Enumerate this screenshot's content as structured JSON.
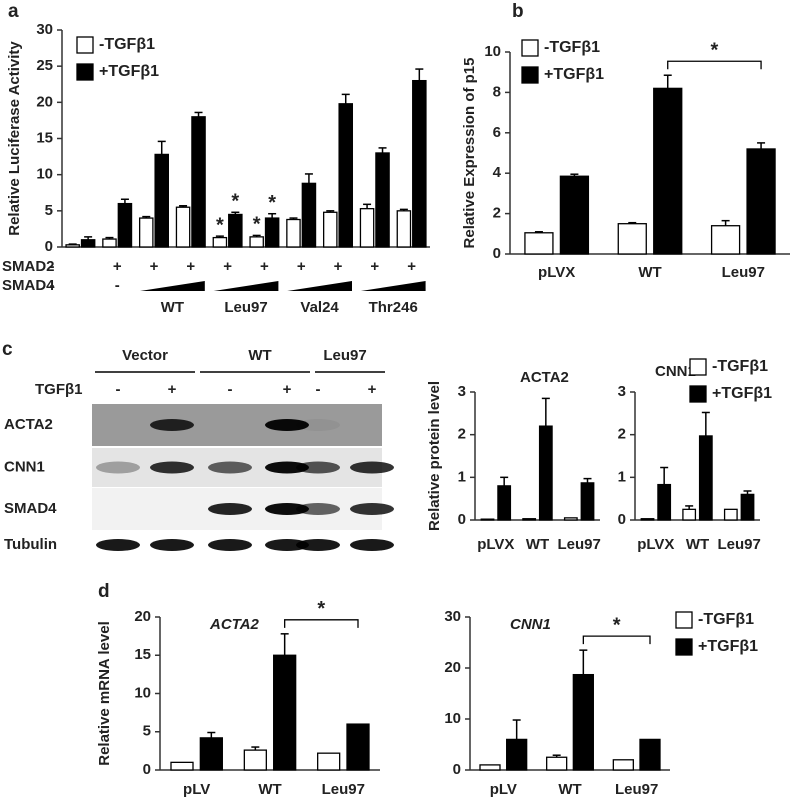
{
  "chart_data": [
    {
      "type": "bar",
      "panel": "a",
      "ylabel": "Relative Luciferase Activity",
      "ylim": [
        0,
        30
      ],
      "yticks": [
        0,
        5,
        10,
        15,
        20,
        25,
        30
      ],
      "categories": [
        null,
        null,
        null,
        null,
        null,
        null,
        null,
        null,
        null,
        null
      ],
      "series": [
        {
          "name": "-TGFβ1",
          "color": "#ffffff",
          "values": [
            0.3,
            1.1,
            4.0,
            5.5,
            1.3,
            1.4,
            3.8,
            4.8,
            5.3,
            5.0
          ],
          "errors": [
            0.1,
            0.2,
            0.2,
            0.2,
            0.2,
            0.2,
            0.2,
            0.2,
            0.6,
            0.2
          ],
          "significance": [
            null,
            null,
            null,
            null,
            "*",
            "*",
            null,
            null,
            null,
            null
          ]
        },
        {
          "name": "+TGFβ1",
          "color": "#000000",
          "values": [
            1.0,
            6.0,
            12.8,
            18.0,
            4.5,
            4.0,
            8.8,
            19.8,
            13.0,
            23.0
          ],
          "errors": [
            0.4,
            0.6,
            1.8,
            0.6,
            0.3,
            0.6,
            1.3,
            1.3,
            0.7,
            1.6
          ],
          "significance": [
            null,
            null,
            null,
            null,
            "*",
            "*",
            null,
            null,
            null,
            null
          ]
        }
      ],
      "x_rows": [
        {
          "label": "SMAD2",
          "values": [
            "-",
            "+",
            "+",
            "+",
            "+",
            "+",
            "+",
            "+",
            "+",
            "+"
          ]
        },
        {
          "label": "SMAD4",
          "values": [
            "-",
            "-",
            null,
            null,
            null,
            null,
            null,
            null,
            null,
            null
          ]
        }
      ],
      "group_labels": [
        "WT",
        "Leu97",
        "Val24",
        "Thr246"
      ],
      "legend": true
    },
    {
      "type": "bar",
      "panel": "b",
      "ylabel": "Relative Expression of p15",
      "ylim": [
        0,
        10
      ],
      "yticks": [
        0,
        2,
        4,
        6,
        8,
        10
      ],
      "categories": [
        "pLVX",
        "WT",
        "Leu97"
      ],
      "series": [
        {
          "name": "-TGFβ1",
          "color": "#ffffff",
          "values": [
            1.05,
            1.5,
            1.4
          ],
          "errors": [
            0.05,
            0.05,
            0.25
          ]
        },
        {
          "name": "+TGFβ1",
          "color": "#000000",
          "values": [
            3.85,
            8.2,
            5.2
          ],
          "errors": [
            0.1,
            0.65,
            0.3
          ]
        }
      ],
      "bracket": {
        "from": 1,
        "to": 2,
        "label": "*"
      },
      "legend": true
    },
    {
      "type": "bar",
      "title": "ACTA2",
      "ylabel": "Relative protein level",
      "ylim": [
        0,
        3
      ],
      "yticks": [
        0,
        1,
        2,
        3
      ],
      "categories": [
        "pLVX",
        "WT",
        "Leu97"
      ],
      "series": [
        {
          "name": "-TGFβ1",
          "color": "#ffffff",
          "values": [
            0.02,
            0.03,
            0.05
          ],
          "errors": [
            null,
            null,
            null
          ]
        },
        {
          "name": "+TGFβ1",
          "color": "#000000",
          "values": [
            0.8,
            2.2,
            0.87
          ],
          "errors": [
            0.2,
            0.65,
            0.1
          ]
        }
      ]
    },
    {
      "type": "bar",
      "title": "CNN1",
      "ylim": [
        0,
        3
      ],
      "yticks": [
        0,
        1,
        2,
        3
      ],
      "categories": [
        "pLVX",
        "WT",
        "Leu97"
      ],
      "series": [
        {
          "name": "-TGFβ1",
          "color": "#ffffff",
          "values": [
            0.03,
            0.25,
            0.25
          ],
          "errors": [
            null,
            0.08,
            null
          ]
        },
        {
          "name": "+TGFβ1",
          "color": "#000000",
          "values": [
            0.83,
            1.97,
            0.6
          ],
          "errors": [
            0.4,
            0.55,
            0.08
          ]
        }
      ],
      "legend": true
    },
    {
      "type": "bar",
      "panel": "d",
      "title": "ACTA2",
      "ylabel": "Relative mRNA level",
      "ylim": [
        0,
        20
      ],
      "yticks": [
        0,
        5,
        10,
        15,
        20
      ],
      "categories": [
        "pLV",
        "WT",
        "Leu97"
      ],
      "series": [
        {
          "name": "-TGFβ1",
          "color": "#ffffff",
          "values": [
            1.0,
            2.6,
            2.2
          ],
          "errors": [
            null,
            0.4,
            null
          ]
        },
        {
          "name": "+TGFβ1",
          "color": "#000000",
          "values": [
            4.2,
            15,
            6.0
          ],
          "errors": [
            0.7,
            2.8,
            null
          ]
        }
      ],
      "bracket": {
        "from": 1,
        "to": 2,
        "label": "*"
      }
    },
    {
      "type": "bar",
      "title": "CNN1",
      "ylim": [
        0,
        30
      ],
      "yticks": [
        0,
        10,
        20,
        30
      ],
      "categories": [
        "pLV",
        "WT",
        "Leu97"
      ],
      "series": [
        {
          "name": "-TGFβ1",
          "color": "#ffffff",
          "values": [
            1.0,
            2.5,
            2.0
          ],
          "errors": [
            null,
            0.4,
            null
          ]
        },
        {
          "name": "+TGFβ1",
          "color": "#000000",
          "values": [
            6.0,
            18.7,
            6.0
          ],
          "errors": [
            3.8,
            4.8,
            null
          ]
        }
      ],
      "bracket": {
        "from": 1,
        "to": 2,
        "label": "*"
      },
      "legend": true
    }
  ],
  "blot": {
    "panel": "c",
    "groups": [
      "Vector",
      "WT",
      "Leu97"
    ],
    "treatment": "TGFβ1",
    "treatment_values": [
      "-",
      "+",
      "-",
      "+",
      "-",
      "+"
    ],
    "rows": [
      "ACTA2",
      "CNN1",
      "SMAD4",
      "Tubulin"
    ]
  }
}
